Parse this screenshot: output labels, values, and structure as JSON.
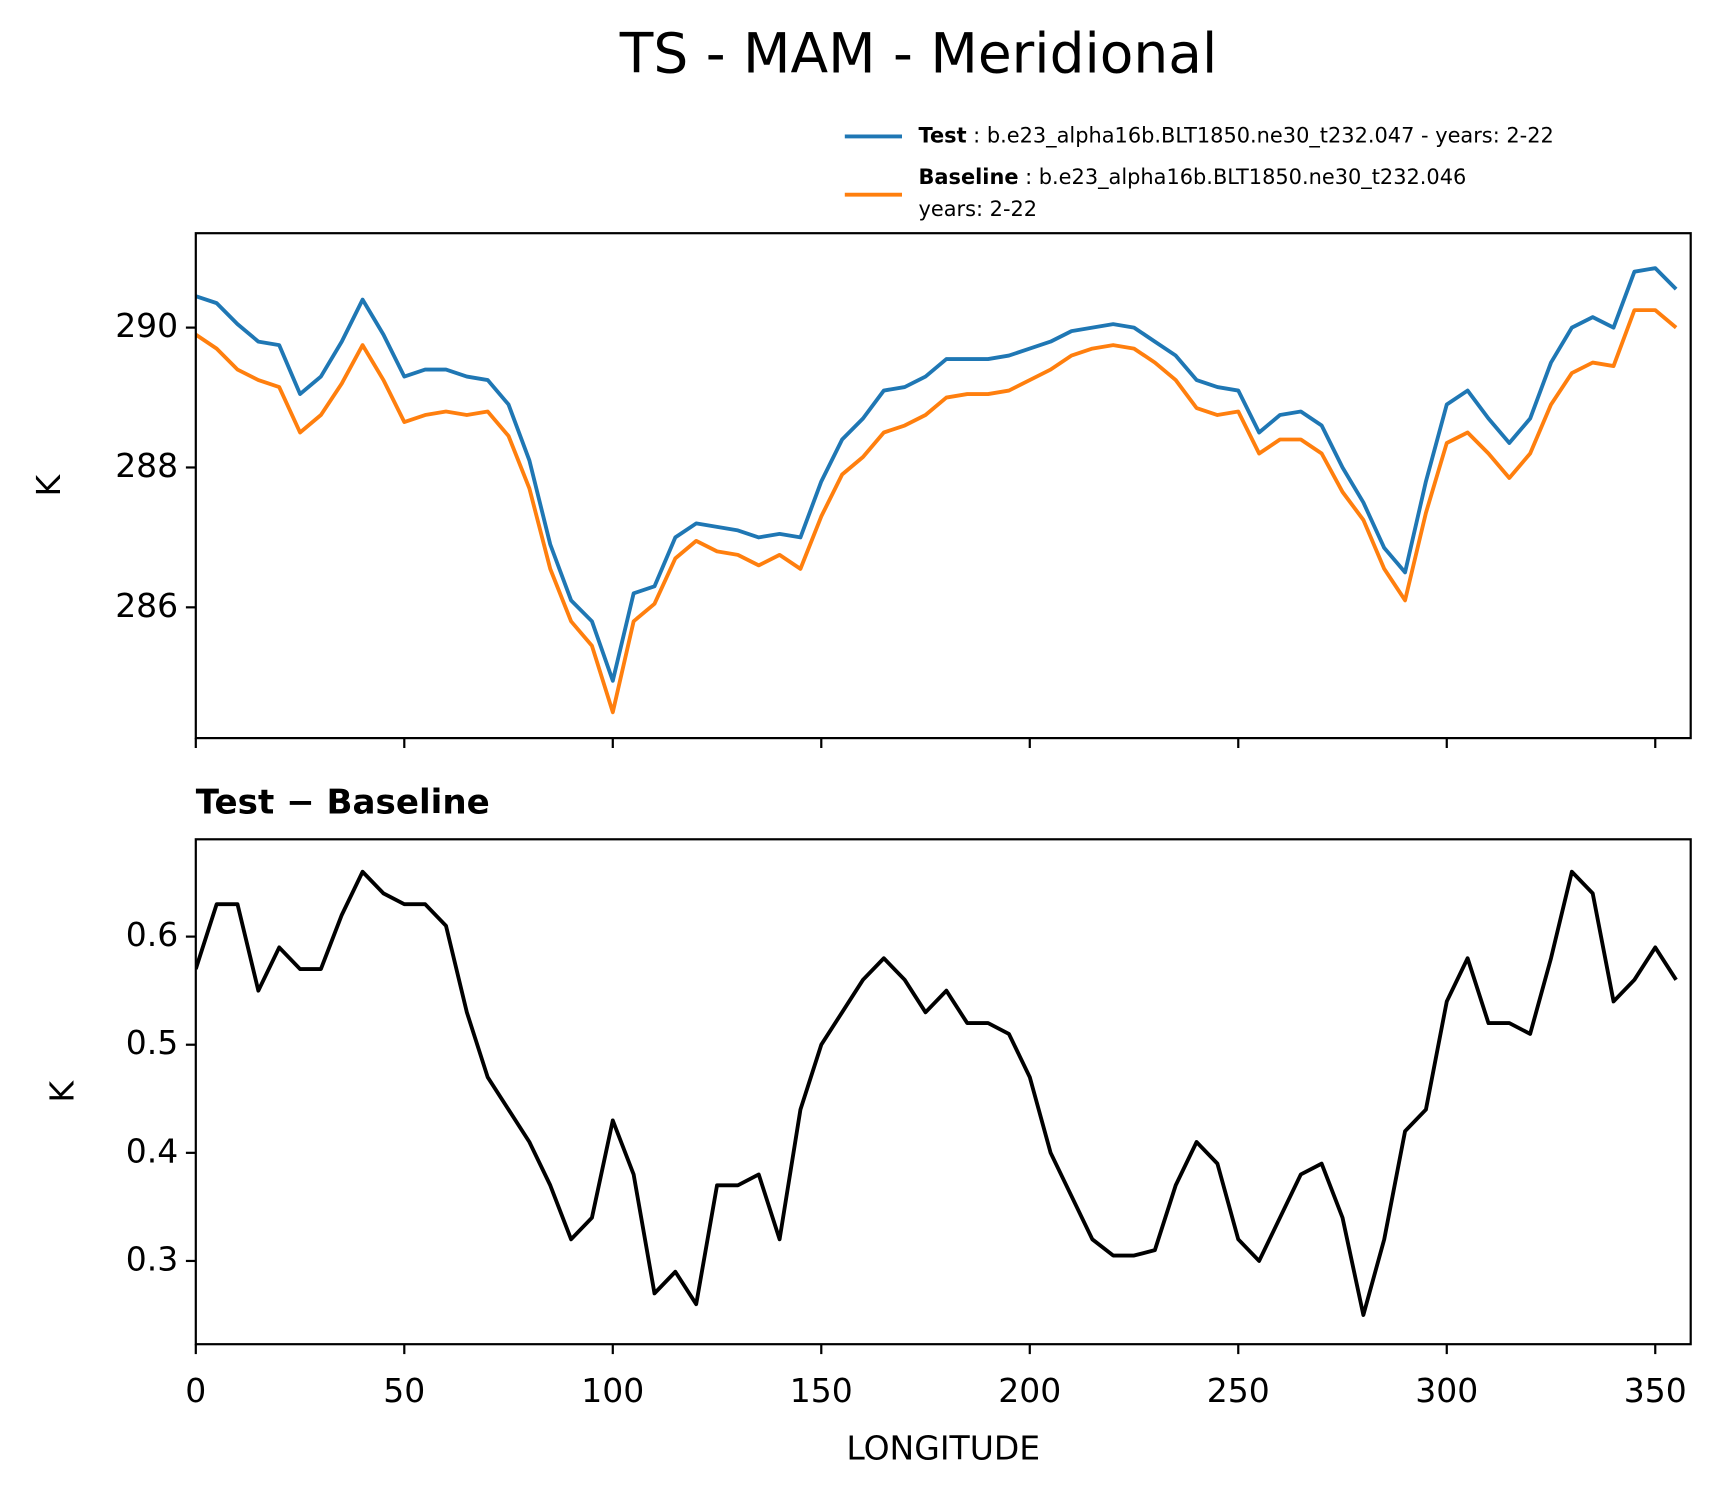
{
  "chart_data": [
    {
      "type": "line",
      "title": "TS - MAM - Meridional",
      "ylabel": "K",
      "x": [
        0,
        5,
        10,
        15,
        20,
        25,
        30,
        35,
        40,
        45,
        50,
        55,
        60,
        65,
        70,
        75,
        80,
        85,
        90,
        95,
        100,
        105,
        110,
        115,
        120,
        125,
        130,
        135,
        140,
        145,
        150,
        155,
        160,
        165,
        170,
        175,
        180,
        185,
        190,
        195,
        200,
        205,
        210,
        215,
        220,
        225,
        230,
        235,
        240,
        245,
        250,
        255,
        260,
        265,
        270,
        275,
        280,
        285,
        290,
        295,
        300,
        305,
        310,
        315,
        320,
        325,
        330,
        335,
        340,
        345,
        350,
        355
      ],
      "series": [
        {
          "name": "Test",
          "legend_text": [
            ": b.e23_alpha16b.BLT1850.ne30_t232.047 - years: 2-22"
          ],
          "color": "#1f77b4",
          "values": [
            290.45,
            290.35,
            290.05,
            289.8,
            289.75,
            289.05,
            289.3,
            289.8,
            290.4,
            289.9,
            289.3,
            289.4,
            289.4,
            289.3,
            289.25,
            288.9,
            288.1,
            286.9,
            286.1,
            285.8,
            284.95,
            286.2,
            286.3,
            287.0,
            287.2,
            287.15,
            287.1,
            287.0,
            287.05,
            287.0,
            287.8,
            288.4,
            288.7,
            289.1,
            289.15,
            289.3,
            289.55,
            289.55,
            289.55,
            289.6,
            289.7,
            289.8,
            289.95,
            290.0,
            290.05,
            290.0,
            289.8,
            289.6,
            289.25,
            289.15,
            289.1,
            288.5,
            288.75,
            288.8,
            288.6,
            288.0,
            287.5,
            286.85,
            286.5,
            287.8,
            288.9,
            289.1,
            288.7,
            288.35,
            288.7,
            289.5,
            290.0,
            290.15,
            290.0,
            290.8,
            290.85,
            290.55
          ]
        },
        {
          "name": "Baseline",
          "legend_text": [
            ": b.e23_alpha16b.BLT1850.ne30_t232.046",
            "years: 2-22"
          ],
          "color": "#ff7f0e",
          "values": [
            289.9,
            289.7,
            289.4,
            289.25,
            289.15,
            288.5,
            288.75,
            289.2,
            289.75,
            289.25,
            288.65,
            288.75,
            288.8,
            288.75,
            288.8,
            288.45,
            287.7,
            286.55,
            285.8,
            285.45,
            284.5,
            285.8,
            286.05,
            286.7,
            286.95,
            286.8,
            286.75,
            286.6,
            286.75,
            286.55,
            287.3,
            287.9,
            288.15,
            288.5,
            288.6,
            288.75,
            289.0,
            289.05,
            289.05,
            289.1,
            289.25,
            289.4,
            289.6,
            289.7,
            289.75,
            289.7,
            289.5,
            289.25,
            288.85,
            288.75,
            288.8,
            288.2,
            288.4,
            288.4,
            288.2,
            287.65,
            287.25,
            286.55,
            286.1,
            287.35,
            288.35,
            288.5,
            288.2,
            287.85,
            288.2,
            288.9,
            289.35,
            289.5,
            289.45,
            290.25,
            290.25,
            290.0
          ]
        }
      ],
      "xlim": [
        0,
        358.5
      ],
      "xticks": [
        0,
        50,
        100,
        150,
        200,
        250,
        300,
        350
      ],
      "ylim": [
        284.13,
        291.35
      ],
      "yticks": [
        286,
        288,
        290
      ]
    },
    {
      "type": "line",
      "title": "Test − Baseline",
      "ylabel": "K",
      "xlabel": "LONGITUDE",
      "x": [
        0,
        5,
        10,
        15,
        20,
        25,
        30,
        35,
        40,
        45,
        50,
        55,
        60,
        65,
        70,
        75,
        80,
        85,
        90,
        95,
        100,
        105,
        110,
        115,
        120,
        125,
        130,
        135,
        140,
        145,
        150,
        155,
        160,
        165,
        170,
        175,
        180,
        185,
        190,
        195,
        200,
        205,
        210,
        215,
        220,
        225,
        230,
        235,
        240,
        245,
        250,
        255,
        260,
        265,
        270,
        275,
        280,
        285,
        290,
        295,
        300,
        305,
        310,
        315,
        320,
        325,
        330,
        335,
        340,
        345,
        350,
        355
      ],
      "series": [
        {
          "color": "#000000",
          "values": [
            0.57,
            0.63,
            0.63,
            0.55,
            0.59,
            0.57,
            0.57,
            0.62,
            0.66,
            0.64,
            0.63,
            0.63,
            0.61,
            0.53,
            0.47,
            0.44,
            0.41,
            0.37,
            0.32,
            0.34,
            0.43,
            0.38,
            0.27,
            0.29,
            0.26,
            0.37,
            0.37,
            0.38,
            0.32,
            0.44,
            0.5,
            0.53,
            0.56,
            0.58,
            0.56,
            0.53,
            0.55,
            0.52,
            0.52,
            0.51,
            0.47,
            0.4,
            0.36,
            0.32,
            0.305,
            0.305,
            0.31,
            0.37,
            0.41,
            0.39,
            0.32,
            0.3,
            0.34,
            0.38,
            0.39,
            0.34,
            0.25,
            0.32,
            0.42,
            0.44,
            0.54,
            0.58,
            0.52,
            0.52,
            0.51,
            0.58,
            0.66,
            0.64,
            0.54,
            0.56,
            0.59,
            0.56
          ]
        }
      ],
      "xlim": [
        0,
        358.5
      ],
      "xticks": [
        0,
        50,
        100,
        150,
        200,
        250,
        300,
        350
      ],
      "ylim": [
        0.223,
        0.69
      ],
      "yticks": [
        0.3,
        0.4,
        0.5,
        0.6
      ]
    }
  ]
}
